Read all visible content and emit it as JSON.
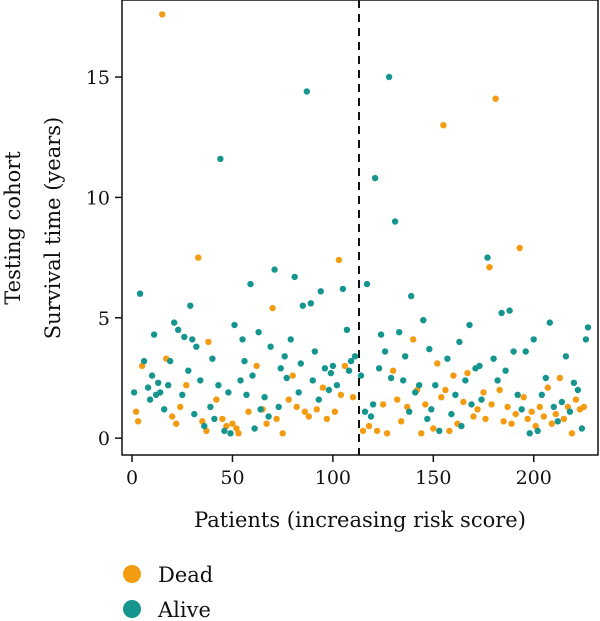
{
  "chart_data": {
    "type": "scatter",
    "cohort_label": "Testing cohort",
    "ylabel": "Survival time (years)",
    "xlabel": "Patients (increasing risk score)",
    "xlim": [
      -5,
      232
    ],
    "ylim": [
      -0.7,
      18.2
    ],
    "xticks": [
      0,
      50,
      100,
      150,
      200
    ],
    "yticks": [
      0,
      5,
      10,
      15
    ],
    "cutoff_x": 113,
    "colors": {
      "Dead": "#F39C12",
      "Alive": "#16958F"
    },
    "legend": [
      {
        "name": "Dead",
        "color": "#F39C12"
      },
      {
        "name": "Alive",
        "color": "#16958F"
      }
    ],
    "series": [
      {
        "name": "Dead",
        "color": "#F39C12",
        "points": [
          [
            2,
            1.1
          ],
          [
            3,
            0.7
          ],
          [
            5,
            3.0
          ],
          [
            15,
            17.6
          ],
          [
            17,
            3.3
          ],
          [
            20,
            0.9
          ],
          [
            22,
            0.6
          ],
          [
            24,
            1.3
          ],
          [
            27,
            2.2
          ],
          [
            33,
            7.5
          ],
          [
            35,
            0.7
          ],
          [
            37,
            0.3
          ],
          [
            38,
            4.0
          ],
          [
            42,
            1.6
          ],
          [
            45,
            0.8
          ],
          [
            47,
            0.5
          ],
          [
            50,
            0.6
          ],
          [
            52,
            0.4
          ],
          [
            53,
            0.2
          ],
          [
            58,
            1.1
          ],
          [
            62,
            3.0
          ],
          [
            65,
            1.2
          ],
          [
            67,
            0.6
          ],
          [
            70,
            5.4
          ],
          [
            72,
            0.8
          ],
          [
            75,
            0.2
          ],
          [
            78,
            1.6
          ],
          [
            80,
            2.6
          ],
          [
            82,
            1.3
          ],
          [
            86,
            1.1
          ],
          [
            88,
            0.9
          ],
          [
            92,
            1.2
          ],
          [
            95,
            2.1
          ],
          [
            97,
            0.8
          ],
          [
            101,
            1.1
          ],
          [
            103,
            7.4
          ],
          [
            104,
            1.8
          ],
          [
            106,
            3.0
          ],
          [
            110,
            1.7
          ],
          [
            115,
            0.3
          ],
          [
            118,
            0.5
          ],
          [
            122,
            0.3
          ],
          [
            125,
            1.4
          ],
          [
            127,
            0.2
          ],
          [
            130,
            2.8
          ],
          [
            132,
            1.6
          ],
          [
            134,
            0.7
          ],
          [
            137,
            1.3
          ],
          [
            140,
            4.1
          ],
          [
            142,
            2.0
          ],
          [
            144,
            0.2
          ],
          [
            146,
            1.4
          ],
          [
            150,
            0.4
          ],
          [
            152,
            3.1
          ],
          [
            154,
            1.7
          ],
          [
            155,
            13.0
          ],
          [
            156,
            2.0
          ],
          [
            158,
            0.3
          ],
          [
            160,
            2.6
          ],
          [
            162,
            0.6
          ],
          [
            165,
            1.5
          ],
          [
            167,
            2.7
          ],
          [
            170,
            0.9
          ],
          [
            172,
            1.2
          ],
          [
            175,
            1.9
          ],
          [
            176,
            0.8
          ],
          [
            178,
            7.1
          ],
          [
            179,
            1.4
          ],
          [
            181,
            14.1
          ],
          [
            183,
            2.0
          ],
          [
            185,
            0.7
          ],
          [
            187,
            1.3
          ],
          [
            189,
            0.6
          ],
          [
            191,
            1.0
          ],
          [
            193,
            7.9
          ],
          [
            195,
            1.7
          ],
          [
            197,
            0.8
          ],
          [
            199,
            1.1
          ],
          [
            201,
            0.5
          ],
          [
            203,
            1.3
          ],
          [
            205,
            0.9
          ],
          [
            207,
            2.1
          ],
          [
            209,
            0.6
          ],
          [
            211,
            1.0
          ],
          [
            213,
            2.5
          ],
          [
            215,
            0.8
          ],
          [
            217,
            1.3
          ],
          [
            219,
            0.2
          ],
          [
            221,
            1.6
          ],
          [
            223,
            1.2
          ],
          [
            225,
            1.3
          ]
        ]
      },
      {
        "name": "Alive",
        "color": "#16958F",
        "points": [
          [
            1,
            1.9
          ],
          [
            4,
            6.0
          ],
          [
            6,
            3.2
          ],
          [
            8,
            2.1
          ],
          [
            9,
            1.6
          ],
          [
            10,
            2.6
          ],
          [
            11,
            4.3
          ],
          [
            12,
            1.8
          ],
          [
            13,
            2.3
          ],
          [
            14,
            1.9
          ],
          [
            16,
            1.2
          ],
          [
            18,
            2.2
          ],
          [
            19,
            3.2
          ],
          [
            21,
            4.8
          ],
          [
            23,
            4.5
          ],
          [
            25,
            1.8
          ],
          [
            26,
            4.2
          ],
          [
            28,
            2.8
          ],
          [
            29,
            5.5
          ],
          [
            30,
            4.1
          ],
          [
            31,
            1.0
          ],
          [
            32,
            3.8
          ],
          [
            34,
            2.4
          ],
          [
            36,
            0.5
          ],
          [
            39,
            1.3
          ],
          [
            40,
            3.3
          ],
          [
            41,
            0.8
          ],
          [
            43,
            2.2
          ],
          [
            44,
            11.6
          ],
          [
            46,
            0.3
          ],
          [
            48,
            1.9
          ],
          [
            49,
            0.2
          ],
          [
            51,
            4.7
          ],
          [
            54,
            2.4
          ],
          [
            55,
            4.1
          ],
          [
            56,
            3.2
          ],
          [
            57,
            1.8
          ],
          [
            59,
            6.4
          ],
          [
            60,
            2.6
          ],
          [
            61,
            0.4
          ],
          [
            63,
            4.4
          ],
          [
            64,
            1.2
          ],
          [
            66,
            1.7
          ],
          [
            68,
            0.9
          ],
          [
            69,
            3.8
          ],
          [
            71,
            7.0
          ],
          [
            73,
            1.3
          ],
          [
            74,
            2.9
          ],
          [
            76,
            3.4
          ],
          [
            77,
            2.5
          ],
          [
            79,
            4.1
          ],
          [
            81,
            6.7
          ],
          [
            83,
            1.9
          ],
          [
            84,
            3.1
          ],
          [
            85,
            5.5
          ],
          [
            87,
            14.4
          ],
          [
            89,
            5.6
          ],
          [
            90,
            2.4
          ],
          [
            91,
            3.6
          ],
          [
            93,
            1.6
          ],
          [
            94,
            6.1
          ],
          [
            96,
            2.9
          ],
          [
            98,
            2.0
          ],
          [
            99,
            2.7
          ],
          [
            100,
            3.0
          ],
          [
            102,
            2.2
          ],
          [
            105,
            6.2
          ],
          [
            107,
            4.5
          ],
          [
            108,
            2.8
          ],
          [
            109,
            3.2
          ],
          [
            111,
            3.4
          ],
          [
            114,
            2.6
          ],
          [
            116,
            1.1
          ],
          [
            117,
            6.4
          ],
          [
            119,
            0.9
          ],
          [
            120,
            1.4
          ],
          [
            121,
            10.8
          ],
          [
            123,
            2.9
          ],
          [
            124,
            4.3
          ],
          [
            126,
            3.6
          ],
          [
            128,
            15.0
          ],
          [
            129,
            2.5
          ],
          [
            131,
            9.0
          ],
          [
            133,
            4.4
          ],
          [
            135,
            2.4
          ],
          [
            136,
            3.4
          ],
          [
            138,
            1.1
          ],
          [
            139,
            5.9
          ],
          [
            141,
            1.9
          ],
          [
            143,
            2.2
          ],
          [
            145,
            4.9
          ],
          [
            147,
            0.8
          ],
          [
            148,
            3.7
          ],
          [
            149,
            1.2
          ],
          [
            151,
            2.2
          ],
          [
            153,
            0.3
          ],
          [
            157,
            3.3
          ],
          [
            159,
            1.0
          ],
          [
            161,
            1.8
          ],
          [
            163,
            4.0
          ],
          [
            164,
            0.5
          ],
          [
            166,
            2.4
          ],
          [
            168,
            4.7
          ],
          [
            169,
            1.4
          ],
          [
            171,
            2.9
          ],
          [
            173,
            3.0
          ],
          [
            174,
            1.6
          ],
          [
            177,
            7.5
          ],
          [
            180,
            3.3
          ],
          [
            182,
            2.4
          ],
          [
            184,
            5.2
          ],
          [
            186,
            2.8
          ],
          [
            188,
            5.3
          ],
          [
            190,
            3.6
          ],
          [
            192,
            1.8
          ],
          [
            194,
            1.2
          ],
          [
            196,
            3.6
          ],
          [
            198,
            0.2
          ],
          [
            200,
            4.1
          ],
          [
            202,
            0.3
          ],
          [
            204,
            1.8
          ],
          [
            206,
            2.5
          ],
          [
            208,
            4.8
          ],
          [
            210,
            1.3
          ],
          [
            212,
            0.7
          ],
          [
            214,
            1.5
          ],
          [
            216,
            3.4
          ],
          [
            218,
            1.1
          ],
          [
            220,
            2.3
          ],
          [
            222,
            2.0
          ],
          [
            224,
            0.4
          ],
          [
            226,
            4.1
          ],
          [
            227,
            4.6
          ]
        ]
      }
    ]
  }
}
